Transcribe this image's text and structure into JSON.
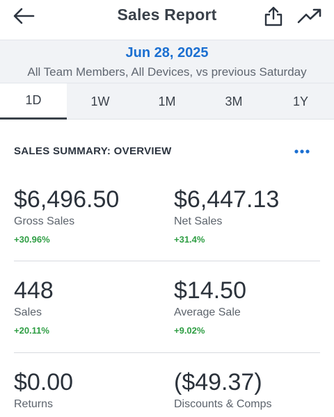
{
  "header": {
    "title": "Sales Report",
    "icons": {
      "back": "arrow-left-icon",
      "share": "share-icon",
      "trend": "trending-up-icon"
    }
  },
  "date_band": {
    "date": "Jun 28, 2025",
    "filter": "All Team Members, All Devices, vs previous Saturday"
  },
  "tabs": [
    {
      "label": "1D",
      "active": true
    },
    {
      "label": "1W",
      "active": false
    },
    {
      "label": "1M",
      "active": false
    },
    {
      "label": "3M",
      "active": false
    },
    {
      "label": "1Y",
      "active": false
    }
  ],
  "summary": {
    "title": "SALES SUMMARY: OVERVIEW",
    "more_icon": "more-horizontal-icon",
    "metrics": [
      {
        "value": "$6,496.50",
        "label": "Gross Sales",
        "change": "+30.96%"
      },
      {
        "value": "$6,447.13",
        "label": "Net Sales",
        "change": "+31.4%"
      },
      {
        "value": "448",
        "label": "Sales",
        "change": "+20.11%"
      },
      {
        "value": "$14.50",
        "label": "Average Sale",
        "change": "+9.02%"
      },
      {
        "value": "$0.00",
        "label": "Returns"
      },
      {
        "value": "($49.37)",
        "label": "Discounts & Comps"
      }
    ]
  },
  "colors": {
    "accent": "#1b6fd1",
    "positive": "#2f9e44",
    "band_background": "#f1f3f6",
    "text": "#2d3540"
  }
}
